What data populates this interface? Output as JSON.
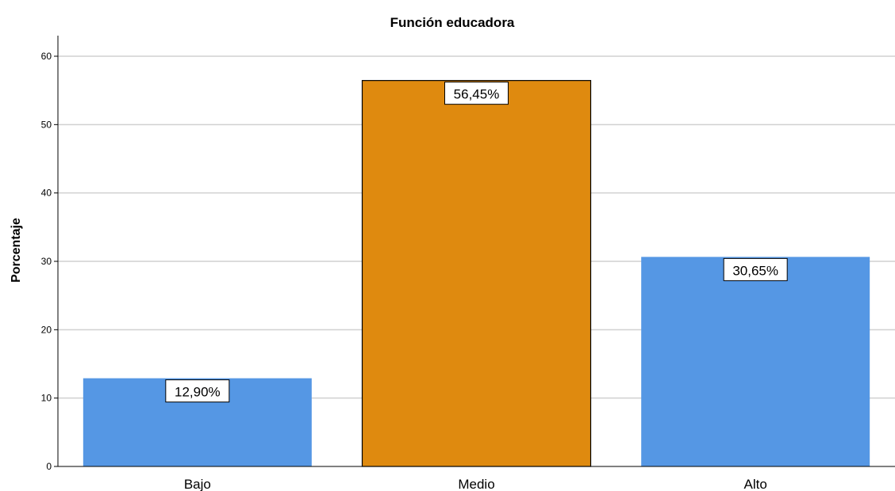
{
  "chart_data": {
    "type": "bar",
    "title": "Función educadora",
    "xlabel": "",
    "ylabel": "Porcentaje",
    "categories": [
      "Bajo",
      "Medio",
      "Alto"
    ],
    "values": [
      12.9,
      56.45,
      30.65
    ],
    "data_labels": [
      "12,90%",
      "56,45%",
      "30,65%"
    ],
    "bar_colors": [
      "#5597e4",
      "#df8a0f",
      "#5597e4"
    ],
    "ylim": [
      0,
      60
    ],
    "yticks": [
      0,
      10,
      20,
      30,
      40,
      50,
      60
    ],
    "grid": true,
    "legend": "none"
  }
}
